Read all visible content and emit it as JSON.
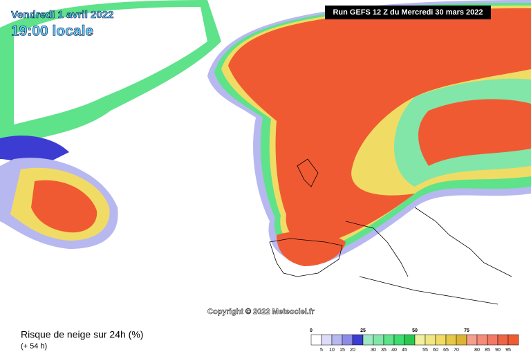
{
  "header": {
    "date": "Vendredi 1 avril 2022",
    "time": "19:00 locale",
    "run": "Run GEFS 12 Z du Mercredi 30 mars 2022"
  },
  "copyright": "Copyright © 2022 Meteociel.fr",
  "caption": {
    "title": "Risque de neige sur 24h (%)",
    "lead": "(+ 54 h)"
  },
  "legend": {
    "major": [
      "0",
      "25",
      "50",
      "75"
    ],
    "minor": [
      "5",
      "10",
      "15",
      "20",
      "30",
      "35",
      "40",
      "45",
      "55",
      "60",
      "65",
      "70",
      "80",
      "85",
      "90",
      "95"
    ],
    "colors": [
      "#ffffff",
      "#dcdcf8",
      "#b8b8f0",
      "#8c8ce6",
      "#3c3cd2",
      "#9ee8c4",
      "#82e6a8",
      "#5ee28a",
      "#3cdc6e",
      "#28c850",
      "#f0f0a0",
      "#f0e682",
      "#f0dc64",
      "#e6c846",
      "#dcb432",
      "#f5a08c",
      "#f58c78",
      "#f57864",
      "#f06446",
      "#f05a32"
    ]
  }
}
